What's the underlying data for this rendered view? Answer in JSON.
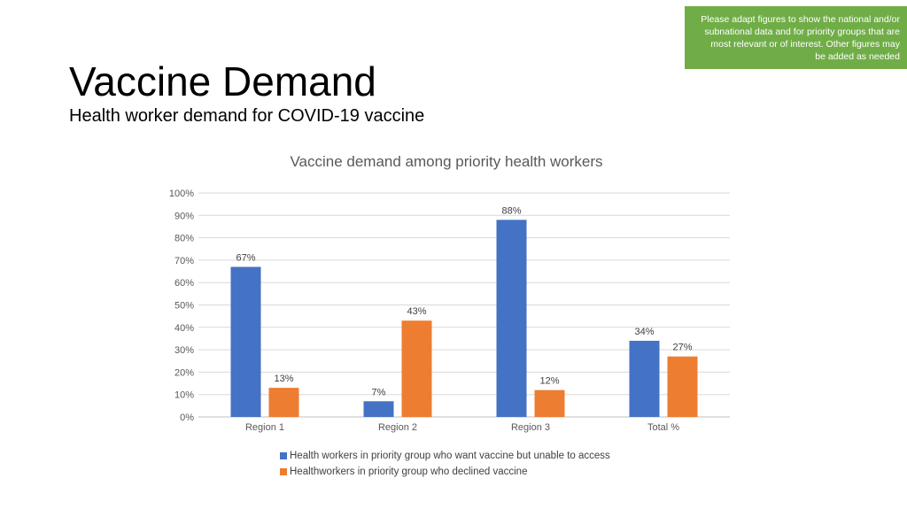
{
  "note": {
    "lines": [
      "Please adapt figures to show the national and/or",
      "subnational data and for priority groups that are",
      "most relevant or of interest. Other figures may",
      "be added as needed"
    ]
  },
  "slide": {
    "title": "Vaccine Demand",
    "subtitle": "Health worker demand for COVID-19 vaccine"
  },
  "colors": {
    "series_1": "#4472c4",
    "series_2": "#ed7d31",
    "note_bg": "#70ad47",
    "gridline": "#d9d9d9",
    "axis_text": "#595959"
  },
  "chart_data": {
    "type": "bar",
    "title": "Vaccine demand among priority health workers",
    "categories": [
      "Region 1",
      "Region 2",
      "Region 3",
      "Total %"
    ],
    "series": [
      {
        "name": "Health workers in priority group who want vaccine but unable to access",
        "values": [
          67,
          7,
          88,
          34
        ],
        "labels": [
          "67%",
          "7%",
          "88%",
          "34%"
        ]
      },
      {
        "name": "Healthworkers in priority group who declined vaccine",
        "values": [
          13,
          43,
          12,
          27
        ],
        "labels": [
          "13%",
          "43%",
          "12%",
          "27%"
        ]
      }
    ],
    "ylim": [
      0,
      100
    ],
    "yticks": [
      "0%",
      "10%",
      "20%",
      "30%",
      "40%",
      "50%",
      "60%",
      "70%",
      "80%",
      "90%",
      "100%"
    ],
    "grid": true,
    "legend": "bottom"
  }
}
